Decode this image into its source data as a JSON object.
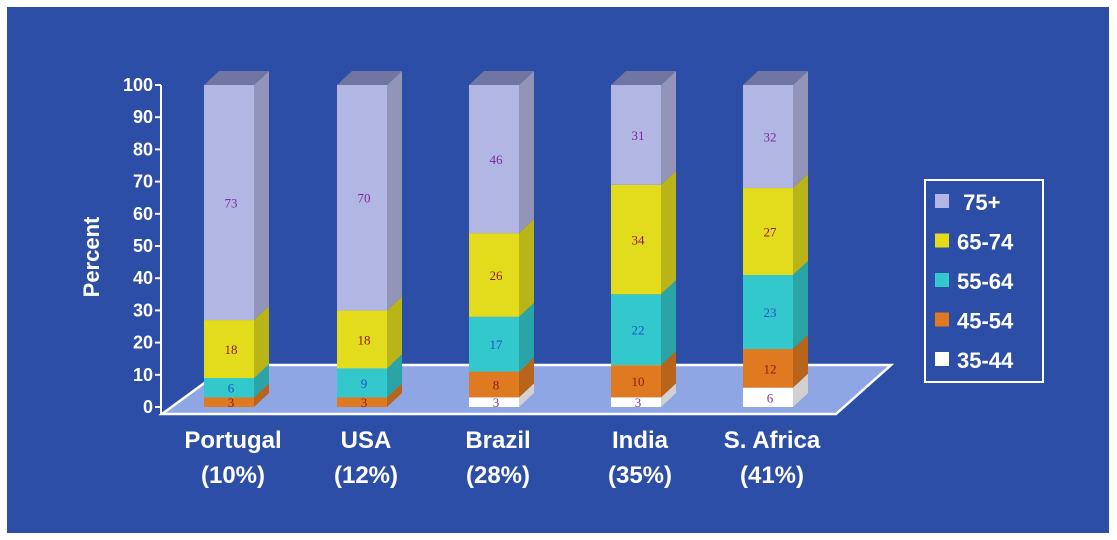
{
  "chart_data": {
    "type": "bar",
    "stacked": true,
    "three_d": true,
    "ylabel": "Percent",
    "ylim": [
      0,
      100
    ],
    "yticks": [
      0,
      10,
      20,
      30,
      40,
      50,
      60,
      70,
      80,
      90,
      100
    ],
    "categories": [
      {
        "name": "Portugal",
        "sub": "(10%)"
      },
      {
        "name": "USA",
        "sub": "(12%)"
      },
      {
        "name": "Brazil",
        "sub": "(28%)"
      },
      {
        "name": "India",
        "sub": "(35%)"
      },
      {
        "name": "S. Africa",
        "sub": "(41%)"
      }
    ],
    "series": [
      {
        "name": "35-44",
        "color": "#ffffff",
        "label_color": "#7a3a8a",
        "values": [
          0,
          0,
          3,
          3,
          6
        ],
        "labels": [
          "",
          "",
          "3",
          "3",
          "6"
        ]
      },
      {
        "name": "45-54",
        "color": "#e07a20",
        "label_color": "#8b1a1a",
        "values": [
          3,
          3,
          8,
          10,
          12
        ],
        "labels": [
          "3",
          "3",
          "8",
          "10",
          "12"
        ]
      },
      {
        "name": "55-64",
        "color": "#33c8cc",
        "label_color": "#1a55c8",
        "values": [
          6,
          9,
          17,
          22,
          23
        ],
        "labels": [
          "6",
          "9",
          "17",
          "22",
          "23"
        ]
      },
      {
        "name": "65-74",
        "color": "#e2dc1c",
        "label_color": "#8b1a1a",
        "values": [
          18,
          18,
          26,
          34,
          27
        ],
        "labels": [
          "18",
          "18",
          "26",
          "34",
          "27"
        ]
      },
      {
        "name": "75+",
        "color": "#b2b6e2",
        "label_color": "#7a2a9a",
        "values": [
          73,
          70,
          46,
          31,
          32
        ],
        "labels": [
          "73",
          "70",
          "46",
          "31",
          "32"
        ]
      }
    ],
    "legend": {
      "placement": "right",
      "order": [
        "75+",
        "65-74",
        "55-64",
        "45-54",
        "35-44"
      ]
    },
    "floor_color": "#8ea6e4",
    "background": "#2d4ea6"
  }
}
